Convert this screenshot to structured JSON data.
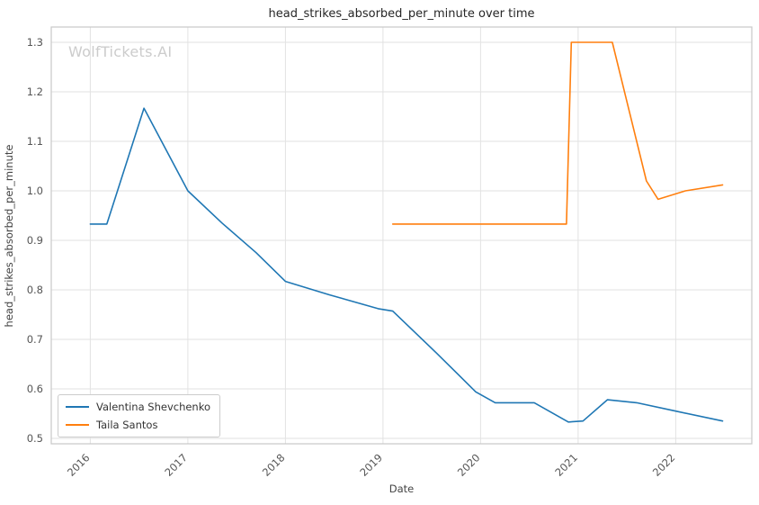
{
  "watermark": "WolfTickets.AI",
  "chart_data": {
    "type": "line",
    "title": "head_strikes_absorbed_per_minute over time",
    "xlabel": "Date",
    "ylabel": "head_strikes_absorbed_per_minute",
    "xlim": [
      2015.6,
      2022.78
    ],
    "ylim": [
      0.489,
      1.331
    ],
    "x_ticks": [
      2016,
      2017,
      2018,
      2019,
      2020,
      2021,
      2022
    ],
    "y_ticks": [
      0.5,
      0.6,
      0.7,
      0.8,
      0.9,
      1.0,
      1.1,
      1.2,
      1.3
    ],
    "grid": true,
    "legend_position": "lower left",
    "colors": {
      "grid": "#e2e2e2",
      "spine": "#c8c8c8",
      "tick_label": "#555555",
      "title": "#262626",
      "watermark": "#cccccc"
    },
    "series": [
      {
        "name": "Valentina Shevchenko",
        "color": "#1f77b4",
        "x": [
          2016.0,
          2016.17,
          2016.55,
          2017.0,
          2017.35,
          2017.7,
          2018.0,
          2018.45,
          2018.95,
          2019.1,
          2019.55,
          2019.95,
          2020.15,
          2020.55,
          2020.9,
          2021.05,
          2021.3,
          2021.6,
          2022.0,
          2022.48
        ],
        "y": [
          0.933,
          0.933,
          1.167,
          1.0,
          0.935,
          0.875,
          0.817,
          0.79,
          0.762,
          0.757,
          0.672,
          0.594,
          0.572,
          0.572,
          0.533,
          0.535,
          0.578,
          0.572,
          0.555,
          0.535
        ]
      },
      {
        "name": "Taila Santos",
        "color": "#ff7f0e",
        "x": [
          2019.1,
          2020.0,
          2020.88,
          2020.93,
          2021.35,
          2021.7,
          2021.82,
          2022.1,
          2022.48
        ],
        "y": [
          0.933,
          0.933,
          0.933,
          1.3,
          1.3,
          1.02,
          0.983,
          1.0,
          1.012
        ]
      }
    ]
  }
}
